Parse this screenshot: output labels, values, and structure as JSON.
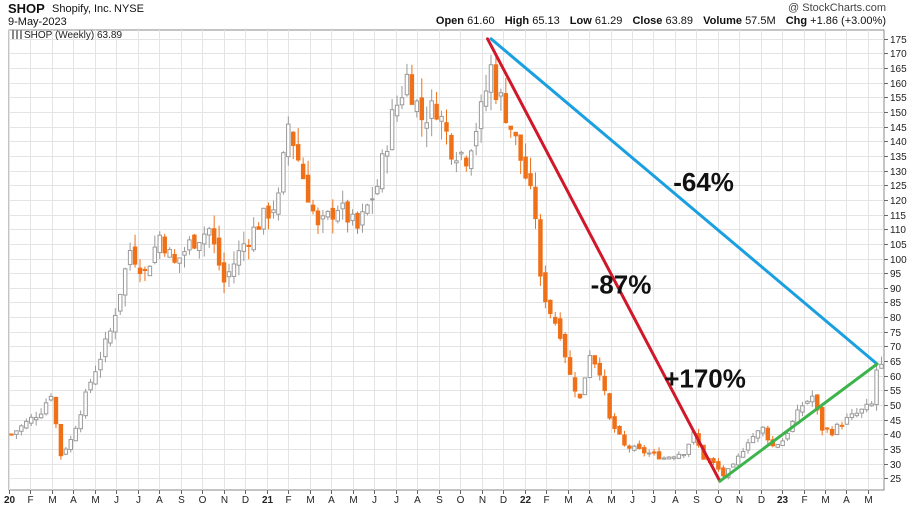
{
  "header": {
    "ticker": "SHOP",
    "company": "Shopify, Inc.",
    "exchange": "NYSE",
    "date": "9-May-2023",
    "brand": "@ StockCharts.com",
    "open_label": "Open",
    "open_value": "61.60",
    "high_label": "High",
    "high_value": "65.13",
    "low_label": "Low",
    "low_value": "61.29",
    "close_label": "Close",
    "close_value": "63.89",
    "volume_label": "Volume",
    "volume_value": "57.5M",
    "chg_label": "Chg",
    "chg_value": "+1.86 (+3.00%)"
  },
  "legend": {
    "label": "SHOP (Weekly) 63.89"
  },
  "chart_data": {
    "type": "candlestick",
    "title": "SHOP Shopify, Inc. NYSE",
    "period": "Weekly",
    "ylim": [
      21,
      178
    ],
    "y_ticks": [
      25,
      30,
      35,
      40,
      45,
      50,
      55,
      60,
      65,
      70,
      75,
      80,
      85,
      90,
      95,
      100,
      105,
      110,
      115,
      120,
      125,
      130,
      135,
      140,
      145,
      150,
      155,
      160,
      165,
      170,
      175
    ],
    "x_tick_labels": [
      {
        "label": "20",
        "week": 0
      },
      {
        "label": "F",
        "week": 4.3
      },
      {
        "label": "M",
        "week": 8.6
      },
      {
        "label": "A",
        "week": 13
      },
      {
        "label": "M",
        "week": 17.3
      },
      {
        "label": "J",
        "week": 21.7
      },
      {
        "label": "J",
        "week": 26
      },
      {
        "label": "A",
        "week": 30.4
      },
      {
        "label": "S",
        "week": 34.8
      },
      {
        "label": "O",
        "week": 39.1
      },
      {
        "label": "N",
        "week": 43.5
      },
      {
        "label": "D",
        "week": 47.8
      },
      {
        "label": "21",
        "week": 52.1
      },
      {
        "label": "F",
        "week": 56.5
      },
      {
        "label": "M",
        "week": 60.8
      },
      {
        "label": "A",
        "week": 65.2
      },
      {
        "label": "M",
        "week": 69.5
      },
      {
        "label": "J",
        "week": 73.9
      },
      {
        "label": "J",
        "week": 78.2
      },
      {
        "label": "A",
        "week": 82.6
      },
      {
        "label": "S",
        "week": 86.9
      },
      {
        "label": "O",
        "week": 91.2
      },
      {
        "label": "N",
        "week": 95.6
      },
      {
        "label": "D",
        "week": 99.9
      },
      {
        "label": "22",
        "week": 104.3
      },
      {
        "label": "F",
        "week": 108.6
      },
      {
        "label": "M",
        "week": 113
      },
      {
        "label": "A",
        "week": 117.3
      },
      {
        "label": "M",
        "week": 121.7
      },
      {
        "label": "J",
        "week": 126
      },
      {
        "label": "J",
        "week": 130.3
      },
      {
        "label": "A",
        "week": 134.7
      },
      {
        "label": "S",
        "week": 139
      },
      {
        "label": "O",
        "week": 143.4
      },
      {
        "label": "N",
        "week": 147.7
      },
      {
        "label": "D",
        "week": 152.1
      },
      {
        "label": "23",
        "week": 156.4
      },
      {
        "label": "F",
        "week": 160.8
      },
      {
        "label": "M",
        "week": 165.1
      },
      {
        "label": "A",
        "week": 169.4
      },
      {
        "label": "M",
        "week": 173.8
      }
    ],
    "weekly_close_path": [
      {
        "week": 0,
        "close": 40
      },
      {
        "week": 6,
        "close": 48
      },
      {
        "week": 8,
        "close": 54
      },
      {
        "week": 10,
        "close": 33
      },
      {
        "week": 12,
        "close": 38
      },
      {
        "week": 16,
        "close": 58
      },
      {
        "week": 20,
        "close": 75
      },
      {
        "week": 24,
        "close": 103
      },
      {
        "week": 27,
        "close": 95
      },
      {
        "week": 30,
        "close": 108
      },
      {
        "week": 33,
        "close": 98
      },
      {
        "week": 36,
        "close": 105
      },
      {
        "week": 40,
        "close": 110
      },
      {
        "week": 43,
        "close": 92
      },
      {
        "week": 47,
        "close": 105
      },
      {
        "week": 50,
        "close": 112
      },
      {
        "week": 54,
        "close": 120
      },
      {
        "week": 56,
        "close": 146
      },
      {
        "week": 59,
        "close": 128
      },
      {
        "week": 62,
        "close": 110
      },
      {
        "week": 66,
        "close": 118
      },
      {
        "week": 70,
        "close": 110
      },
      {
        "week": 74,
        "close": 125
      },
      {
        "week": 77,
        "close": 148
      },
      {
        "week": 80,
        "close": 162
      },
      {
        "week": 83,
        "close": 148
      },
      {
        "week": 86,
        "close": 152
      },
      {
        "week": 89,
        "close": 138
      },
      {
        "week": 92,
        "close": 135
      },
      {
        "week": 95,
        "close": 150
      },
      {
        "week": 97,
        "close": 165
      },
      {
        "week": 98,
        "close": 158
      },
      {
        "week": 100,
        "close": 150
      },
      {
        "week": 102,
        "close": 140
      },
      {
        "week": 104,
        "close": 128
      },
      {
        "week": 106,
        "close": 115
      },
      {
        "week": 107,
        "close": 92
      },
      {
        "week": 109,
        "close": 82
      },
      {
        "week": 111,
        "close": 75
      },
      {
        "week": 113,
        "close": 60
      },
      {
        "week": 115,
        "close": 52
      },
      {
        "week": 117,
        "close": 68
      },
      {
        "week": 119,
        "close": 62
      },
      {
        "week": 121,
        "close": 45
      },
      {
        "week": 124,
        "close": 36
      },
      {
        "week": 128,
        "close": 34
      },
      {
        "week": 132,
        "close": 32
      },
      {
        "week": 136,
        "close": 34
      },
      {
        "week": 138,
        "close": 40
      },
      {
        "week": 140,
        "close": 32
      },
      {
        "week": 142,
        "close": 30
      },
      {
        "week": 144,
        "close": 26
      },
      {
        "week": 146,
        "close": 29
      },
      {
        "week": 149,
        "close": 38
      },
      {
        "week": 152,
        "close": 42
      },
      {
        "week": 154,
        "close": 36
      },
      {
        "week": 156,
        "close": 38
      },
      {
        "week": 158,
        "close": 44
      },
      {
        "week": 160,
        "close": 50
      },
      {
        "week": 162,
        "close": 53
      },
      {
        "week": 164,
        "close": 42
      },
      {
        "week": 166,
        "close": 41
      },
      {
        "week": 168,
        "close": 44
      },
      {
        "week": 170,
        "close": 46
      },
      {
        "week": 172,
        "close": 48
      },
      {
        "week": 174,
        "close": 50
      },
      {
        "week": 175,
        "close": 62
      },
      {
        "week": 176,
        "close": 63.89
      }
    ],
    "trendlines": [
      {
        "name": "blue-decline",
        "color": "#1aa0e0",
        "from": {
          "week": 97.5,
          "price": 175
        },
        "to": {
          "week": 175.6,
          "price": 64
        }
      },
      {
        "name": "red-decline",
        "color": "#d0182a",
        "from": {
          "week": 96.8,
          "price": 175
        },
        "to": {
          "week": 143.8,
          "price": 24
        }
      },
      {
        "name": "green-rally",
        "color": "#3cb44b",
        "from": {
          "week": 143.8,
          "price": 24
        },
        "to": {
          "week": 175.6,
          "price": 64
        }
      }
    ],
    "annotations": [
      {
        "text": "-64%",
        "week": 140.5,
        "price": 123
      },
      {
        "text": "-87%",
        "week": 123.8,
        "price": 88
      },
      {
        "text": "+170%",
        "week": 140.8,
        "price": 56
      }
    ],
    "colors": {
      "up": "#9a9a9a",
      "down": "#f07018",
      "grid": "#e4e4e4",
      "axis": "#555555"
    }
  }
}
